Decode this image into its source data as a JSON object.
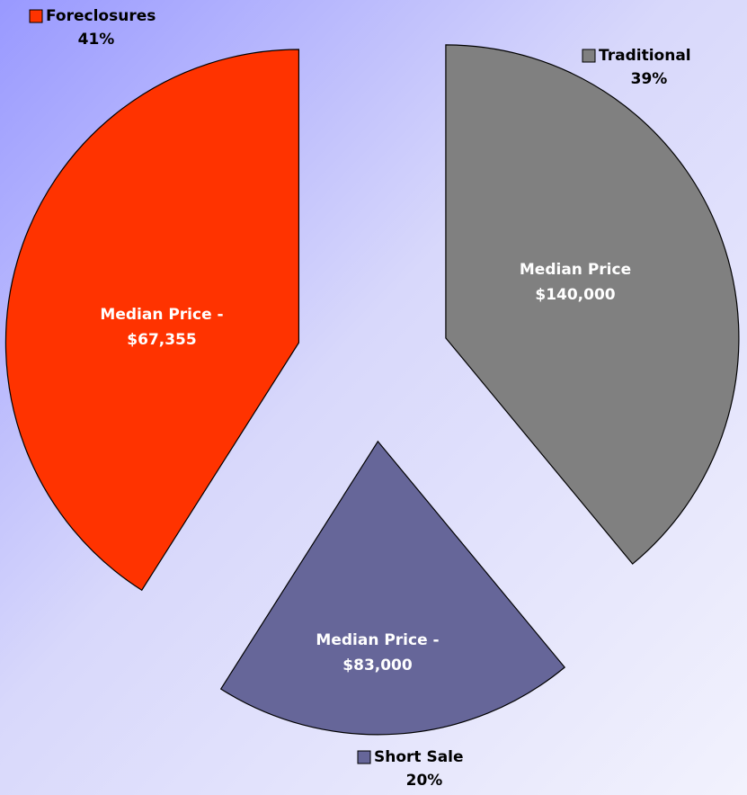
{
  "chart_data": {
    "type": "pie",
    "categories": [
      "Traditional",
      "Short Sale",
      "Foreclosures"
    ],
    "values": [
      39,
      20,
      41
    ],
    "value_labels": [
      "39%",
      "20%",
      "41%"
    ],
    "colors": [
      "#808080",
      "#666699",
      "#ff3300"
    ],
    "inner_labels": [
      [
        "Median Price",
        "$140,000"
      ],
      [
        "Median Price -",
        "$83,000"
      ],
      [
        "Median Price -",
        "$67,355"
      ]
    ],
    "exploded": true
  }
}
